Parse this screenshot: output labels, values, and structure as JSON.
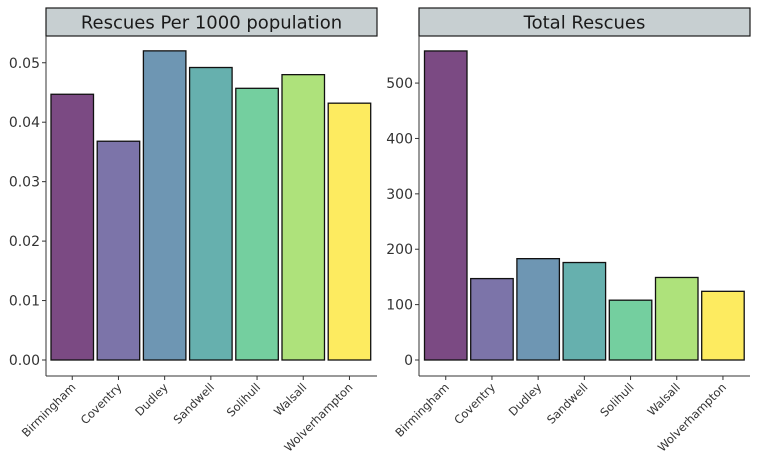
{
  "chart_data": [
    {
      "type": "bar",
      "title": "Rescues Per 1000 population",
      "categories": [
        "Birmingham",
        "Coventry",
        "Dudley",
        "Sandwell",
        "Solihull",
        "Walsall",
        "Wolverhampton"
      ],
      "values": [
        0.0447,
        0.0368,
        0.052,
        0.0492,
        0.0457,
        0.048,
        0.0432
      ],
      "ylim": [
        0,
        0.0545
      ],
      "yticks": [
        0.0,
        0.01,
        0.02,
        0.03,
        0.04,
        0.05
      ],
      "ytick_labels": [
        "0.00",
        "0.01",
        "0.02",
        "0.03",
        "0.04",
        "0.05"
      ],
      "xlabel": "",
      "ylabel": "",
      "grid": false,
      "legend": "none"
    },
    {
      "type": "bar",
      "title": "Total Rescues",
      "categories": [
        "Birmingham",
        "Coventry",
        "Dudley",
        "Sandwell",
        "Solihull",
        "Walsall",
        "Wolverhampton"
      ],
      "values": [
        558,
        147,
        183,
        176,
        108,
        149,
        124
      ],
      "ylim": [
        0,
        585
      ],
      "yticks": [
        0,
        100,
        200,
        300,
        400,
        500
      ],
      "ytick_labels": [
        "0",
        "100",
        "200",
        "300",
        "400",
        "500"
      ],
      "xlabel": "",
      "ylabel": "",
      "grid": false,
      "legend": "none"
    }
  ],
  "colors": {
    "bars": [
      "#7b4a83",
      "#7c74a9",
      "#6e96b3",
      "#66b0ae",
      "#74cf9f",
      "#aee27b",
      "#fdeb60"
    ],
    "strip_fill": "#c7cfd1",
    "axis": "#333333",
    "text": "#333333"
  }
}
